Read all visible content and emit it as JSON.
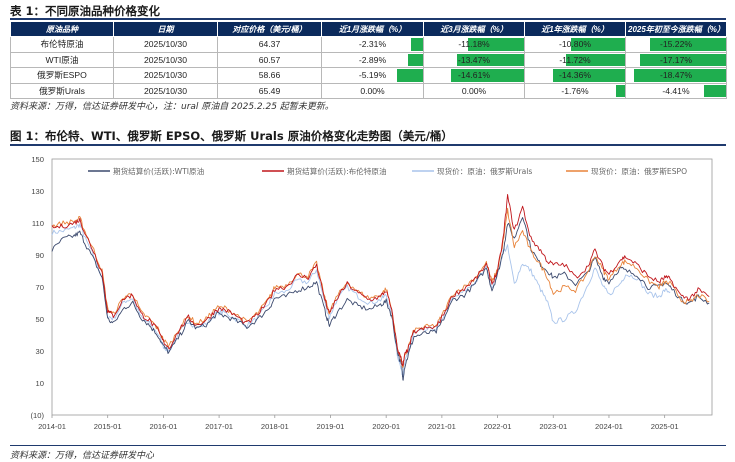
{
  "table_title": "表 1：不同原油品种价格变化",
  "table": {
    "headers": [
      "原油品种",
      "日期",
      "对应价格（美元/桶）",
      "近1月涨跌幅（%）",
      "近3月涨跌幅（%）",
      "近1年涨跌幅（%）",
      "2025年初至今涨跌幅（%）"
    ],
    "rows": [
      {
        "name": "布伦特原油",
        "date": "2025/10/30",
        "price": "64.37",
        "m1": "-2.31%",
        "m3": "-11.18%",
        "y1": "-10.80%",
        "ytd": "-15.22%"
      },
      {
        "name": "WTI原油",
        "date": "2025/10/30",
        "price": "60.57",
        "m1": "-2.89%",
        "m3": "-13.47%",
        "y1": "-11.72%",
        "ytd": "-17.17%"
      },
      {
        "name": "俄罗斯ESPO",
        "date": "2025/10/30",
        "price": "58.66",
        "m1": "-5.19%",
        "m3": "-14.61%",
        "y1": "-14.36%",
        "ytd": "-18.47%"
      },
      {
        "name": "俄罗斯Urals",
        "date": "2025/10/30",
        "price": "65.49",
        "m1": "0.00%",
        "m3": "0.00%",
        "y1": "-1.76%",
        "ytd": "-4.41%"
      }
    ],
    "bar_color": "#1fae4f",
    "header_color": "#0b2a5c"
  },
  "table_source": "资料来源：万得，信达证券研发中心，注：ural 原油自 2025.2.25 起暂未更新。",
  "figure_title": "图 1：布伦特、WTI、俄罗斯 EPSO、俄罗斯 Urals 原油价格变化走势图（美元/桶）",
  "figure_source": "资料来源：万得，信达证券研发中心",
  "chart_data": {
    "type": "line",
    "y_ticks": [
      "150",
      "130",
      "110",
      "90",
      "70",
      "50",
      "30",
      "10",
      "(10)"
    ],
    "y_tick_values": [
      150,
      130,
      110,
      90,
      70,
      50,
      30,
      10,
      -10
    ],
    "ylim": [
      -10,
      150
    ],
    "x_ticks": [
      "2014-01",
      "2015-01",
      "2016-01",
      "2017-01",
      "2018-01",
      "2019-01",
      "2020-01",
      "2021-01",
      "2022-01",
      "2023-01",
      "2024-01",
      "2025-01"
    ],
    "x_tick_years": [
      2014,
      2015,
      2016,
      2017,
      2018,
      2019,
      2020,
      2021,
      2022,
      2023,
      2024,
      2025
    ],
    "xlim": [
      2014.0,
      2025.85
    ],
    "grid": false,
    "legend_position": "top",
    "series": [
      {
        "name": "期货结算价(活跃):WTI原油",
        "color": "#3c4a6e",
        "x": [
          2014.0,
          2014.2,
          2014.4,
          2014.5,
          2014.6,
          2014.75,
          2014.9,
          2015.0,
          2015.1,
          2015.3,
          2015.45,
          2015.6,
          2015.75,
          2015.9,
          2016.0,
          2016.1,
          2016.3,
          2016.45,
          2016.6,
          2016.8,
          2016.95,
          2017.1,
          2017.3,
          2017.5,
          2017.7,
          2017.9,
          2018.0,
          2018.2,
          2018.4,
          2018.6,
          2018.75,
          2018.9,
          2018.98,
          2019.1,
          2019.3,
          2019.5,
          2019.7,
          2019.9,
          2020.0,
          2020.1,
          2020.2,
          2020.28,
          2020.3,
          2020.33,
          2020.4,
          2020.5,
          2020.7,
          2020.9,
          2021.0,
          2021.2,
          2021.4,
          2021.6,
          2021.8,
          2021.9,
          2022.0,
          2022.1,
          2022.18,
          2022.3,
          2022.45,
          2022.6,
          2022.75,
          2022.9,
          2023.0,
          2023.2,
          2023.4,
          2023.6,
          2023.75,
          2023.9,
          2024.0,
          2024.2,
          2024.3,
          2024.5,
          2024.7,
          2024.9,
          2025.0,
          2025.1,
          2025.3,
          2025.45,
          2025.6,
          2025.8
        ],
        "y": [
          93,
          100,
          102,
          104,
          97,
          87,
          76,
          50,
          47,
          57,
          60,
          51,
          46,
          40,
          33,
          29,
          40,
          49,
          44,
          47,
          53,
          52,
          49,
          45,
          50,
          57,
          63,
          64,
          68,
          70,
          73,
          55,
          46,
          53,
          62,
          58,
          56,
          59,
          61,
          52,
          30,
          20,
          12,
          20,
          28,
          39,
          41,
          42,
          48,
          62,
          65,
          72,
          82,
          68,
          78,
          92,
          110,
          100,
          115,
          94,
          85,
          80,
          76,
          78,
          72,
          78,
          88,
          76,
          73,
          82,
          80,
          78,
          70,
          70,
          73,
          70,
          62,
          60,
          64,
          60
        ]
      },
      {
        "name": "期货结算价(活跃):布伦特原油",
        "color": "#c0161b",
        "x": [
          2014.0,
          2014.2,
          2014.4,
          2014.5,
          2014.6,
          2014.75,
          2014.9,
          2015.0,
          2015.1,
          2015.3,
          2015.45,
          2015.6,
          2015.75,
          2015.9,
          2016.0,
          2016.1,
          2016.3,
          2016.45,
          2016.6,
          2016.8,
          2016.95,
          2017.1,
          2017.3,
          2017.5,
          2017.7,
          2017.9,
          2018.0,
          2018.2,
          2018.4,
          2018.6,
          2018.75,
          2018.9,
          2018.98,
          2019.1,
          2019.3,
          2019.5,
          2019.7,
          2019.9,
          2020.0,
          2020.1,
          2020.2,
          2020.28,
          2020.3,
          2020.33,
          2020.4,
          2020.5,
          2020.7,
          2020.9,
          2021.0,
          2021.2,
          2021.4,
          2021.6,
          2021.8,
          2021.9,
          2022.0,
          2022.1,
          2022.18,
          2022.3,
          2022.45,
          2022.6,
          2022.75,
          2022.9,
          2023.0,
          2023.2,
          2023.4,
          2023.6,
          2023.75,
          2023.9,
          2024.0,
          2024.2,
          2024.3,
          2024.5,
          2024.7,
          2024.9,
          2025.0,
          2025.1,
          2025.3,
          2025.45,
          2025.6,
          2025.8
        ],
        "y": [
          107,
          108,
          110,
          112,
          103,
          92,
          79,
          55,
          52,
          63,
          65,
          53,
          49,
          43,
          36,
          32,
          44,
          51,
          46,
          50,
          56,
          56,
          52,
          47,
          53,
          62,
          69,
          70,
          77,
          76,
          84,
          62,
          53,
          62,
          72,
          66,
          62,
          64,
          68,
          55,
          32,
          24,
          20,
          27,
          32,
          42,
          44,
          45,
          51,
          65,
          69,
          75,
          84,
          72,
          80,
          100,
          127,
          105,
          120,
          100,
          94,
          86,
          84,
          84,
          76,
          82,
          93,
          82,
          78,
          87,
          89,
          84,
          77,
          73,
          76,
          75,
          64,
          63,
          68,
          64
        ]
      },
      {
        "name": "现货价：原油：俄罗斯Urals",
        "color": "#a9c4eb",
        "x": [
          2014.0,
          2014.2,
          2014.4,
          2014.5,
          2014.6,
          2014.75,
          2014.9,
          2015.0,
          2015.1,
          2015.3,
          2015.45,
          2015.6,
          2015.75,
          2015.9,
          2016.0,
          2016.1,
          2016.3,
          2016.45,
          2016.6,
          2016.8,
          2016.95,
          2017.1,
          2017.3,
          2017.5,
          2017.7,
          2017.9,
          2018.0,
          2018.2,
          2018.4,
          2018.6,
          2018.75,
          2018.9,
          2018.98,
          2019.1,
          2019.3,
          2019.5,
          2019.7,
          2019.9,
          2020.0,
          2020.1,
          2020.2,
          2020.28,
          2020.3,
          2020.33,
          2020.4,
          2020.5,
          2020.7,
          2020.9,
          2021.0,
          2021.2,
          2021.4,
          2021.6,
          2021.8,
          2021.9,
          2022.0,
          2022.1,
          2022.18,
          2022.3,
          2022.45,
          2022.6,
          2022.75,
          2022.9,
          2023.0,
          2023.2,
          2023.4,
          2023.6,
          2023.75,
          2023.9,
          2024.0,
          2024.2,
          2024.3,
          2024.5,
          2024.7,
          2024.9,
          2025.0,
          2025.1
        ],
        "y": [
          104,
          105,
          107,
          109,
          100,
          89,
          76,
          52,
          50,
          61,
          63,
          51,
          47,
          41,
          33,
          30,
          42,
          49,
          44,
          48,
          54,
          54,
          50,
          46,
          51,
          60,
          66,
          67,
          74,
          73,
          81,
          60,
          51,
          61,
          70,
          64,
          60,
          62,
          65,
          52,
          28,
          17,
          15,
          22,
          30,
          41,
          43,
          44,
          50,
          63,
          67,
          73,
          82,
          70,
          78,
          92,
          95,
          72,
          85,
          80,
          70,
          60,
          48,
          50,
          55,
          70,
          82,
          70,
          65,
          72,
          78,
          76,
          66,
          64,
          68,
          67
        ]
      },
      {
        "name": "现货价：原油：俄罗斯ESPO",
        "color": "#e8833a",
        "x": [
          2014.0,
          2014.2,
          2014.4,
          2014.5,
          2014.6,
          2014.75,
          2014.9,
          2015.0,
          2015.1,
          2015.3,
          2015.45,
          2015.6,
          2015.75,
          2015.9,
          2016.0,
          2016.1,
          2016.3,
          2016.45,
          2016.6,
          2016.8,
          2016.95,
          2017.1,
          2017.3,
          2017.5,
          2017.7,
          2017.9,
          2018.0,
          2018.2,
          2018.4,
          2018.6,
          2018.75,
          2018.9,
          2018.98,
          2019.1,
          2019.3,
          2019.5,
          2019.7,
          2019.9,
          2020.0,
          2020.1,
          2020.2,
          2020.28,
          2020.3,
          2020.33,
          2020.4,
          2020.5,
          2020.7,
          2020.9,
          2021.0,
          2021.2,
          2021.4,
          2021.6,
          2021.8,
          2021.9,
          2022.0,
          2022.1,
          2022.18,
          2022.3,
          2022.45,
          2022.6,
          2022.75,
          2022.9,
          2023.0,
          2023.2,
          2023.4,
          2023.6,
          2023.75,
          2023.9,
          2024.0,
          2024.2,
          2024.3,
          2024.5,
          2024.7,
          2024.9,
          2025.0,
          2025.1,
          2025.3,
          2025.45,
          2025.6,
          2025.8
        ],
        "y": [
          108,
          110,
          111,
          113,
          104,
          93,
          80,
          56,
          53,
          64,
          66,
          54,
          50,
          44,
          37,
          33,
          45,
          52,
          47,
          51,
          57,
          57,
          53,
          48,
          54,
          63,
          70,
          71,
          78,
          77,
          85,
          63,
          54,
          63,
          73,
          67,
          63,
          65,
          69,
          56,
          32,
          23,
          20,
          26,
          33,
          43,
          45,
          46,
          52,
          66,
          70,
          76,
          85,
          73,
          81,
          98,
          118,
          95,
          105,
          92,
          85,
          76,
          66,
          70,
          68,
          78,
          90,
          80,
          75,
          84,
          86,
          82,
          74,
          70,
          73,
          72,
          62,
          60,
          65,
          61
        ]
      }
    ]
  }
}
